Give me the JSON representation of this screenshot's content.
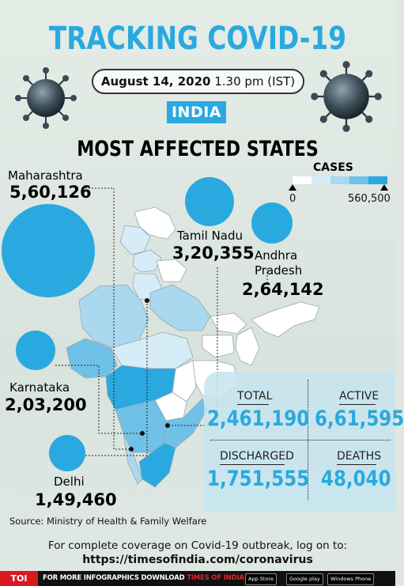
{
  "header": {
    "title": "TRACKING COVID-19",
    "date": "August 14, 2020",
    "time": "1.30 pm (IST)",
    "country": "INDIA",
    "subtitle": "MOST AFFECTED STATES"
  },
  "legend": {
    "title": "CASES",
    "min_label": "0",
    "max_label": "560,500",
    "colors": [
      "#ffffff",
      "#d6ecf6",
      "#a9d8ef",
      "#6fc1e7",
      "#29a9df"
    ]
  },
  "states": [
    {
      "name": "Maharashtra",
      "cases": "5,60,126",
      "cases_value": 560126
    },
    {
      "name": "Tamil Nadu",
      "cases": "3,20,355",
      "cases_value": 320355
    },
    {
      "name": "Andhra Pradesh",
      "name_line1": "Andhra",
      "name_line2": "Pradesh",
      "cases": "2,64,142",
      "cases_value": 264142
    },
    {
      "name": "Karnataka",
      "cases": "2,03,200",
      "cases_value": 203200
    },
    {
      "name": "Delhi",
      "cases": "1,49,460",
      "cases_value": 149460
    }
  ],
  "stats": {
    "total": {
      "label": "TOTAL",
      "value": "2,461,190"
    },
    "active": {
      "label": "ACTIVE",
      "value": "6,61,595"
    },
    "discharged": {
      "label": "DISCHARGED",
      "value": "1,751,555"
    },
    "deaths": {
      "label": "DEATHS",
      "value": "48,040"
    }
  },
  "source": "Source: Ministry of Health & Family Welfare",
  "coverage": {
    "line1": "For complete coverage on Covid-19 outbreak, log on to:",
    "url": "https://timesofindia.com/coronavirus"
  },
  "footer": {
    "brand": "TOI",
    "text_part1": "FOR MORE  INFOGRAPHICS DOWNLOAD ",
    "text_part2": "TIMES OF INDIA  APP",
    "app_store": "App Store",
    "google_play": "Google play",
    "windows": "Windows Phone"
  },
  "accent_color": "#29a9df",
  "icons": [
    "coronavirus-icon"
  ]
}
